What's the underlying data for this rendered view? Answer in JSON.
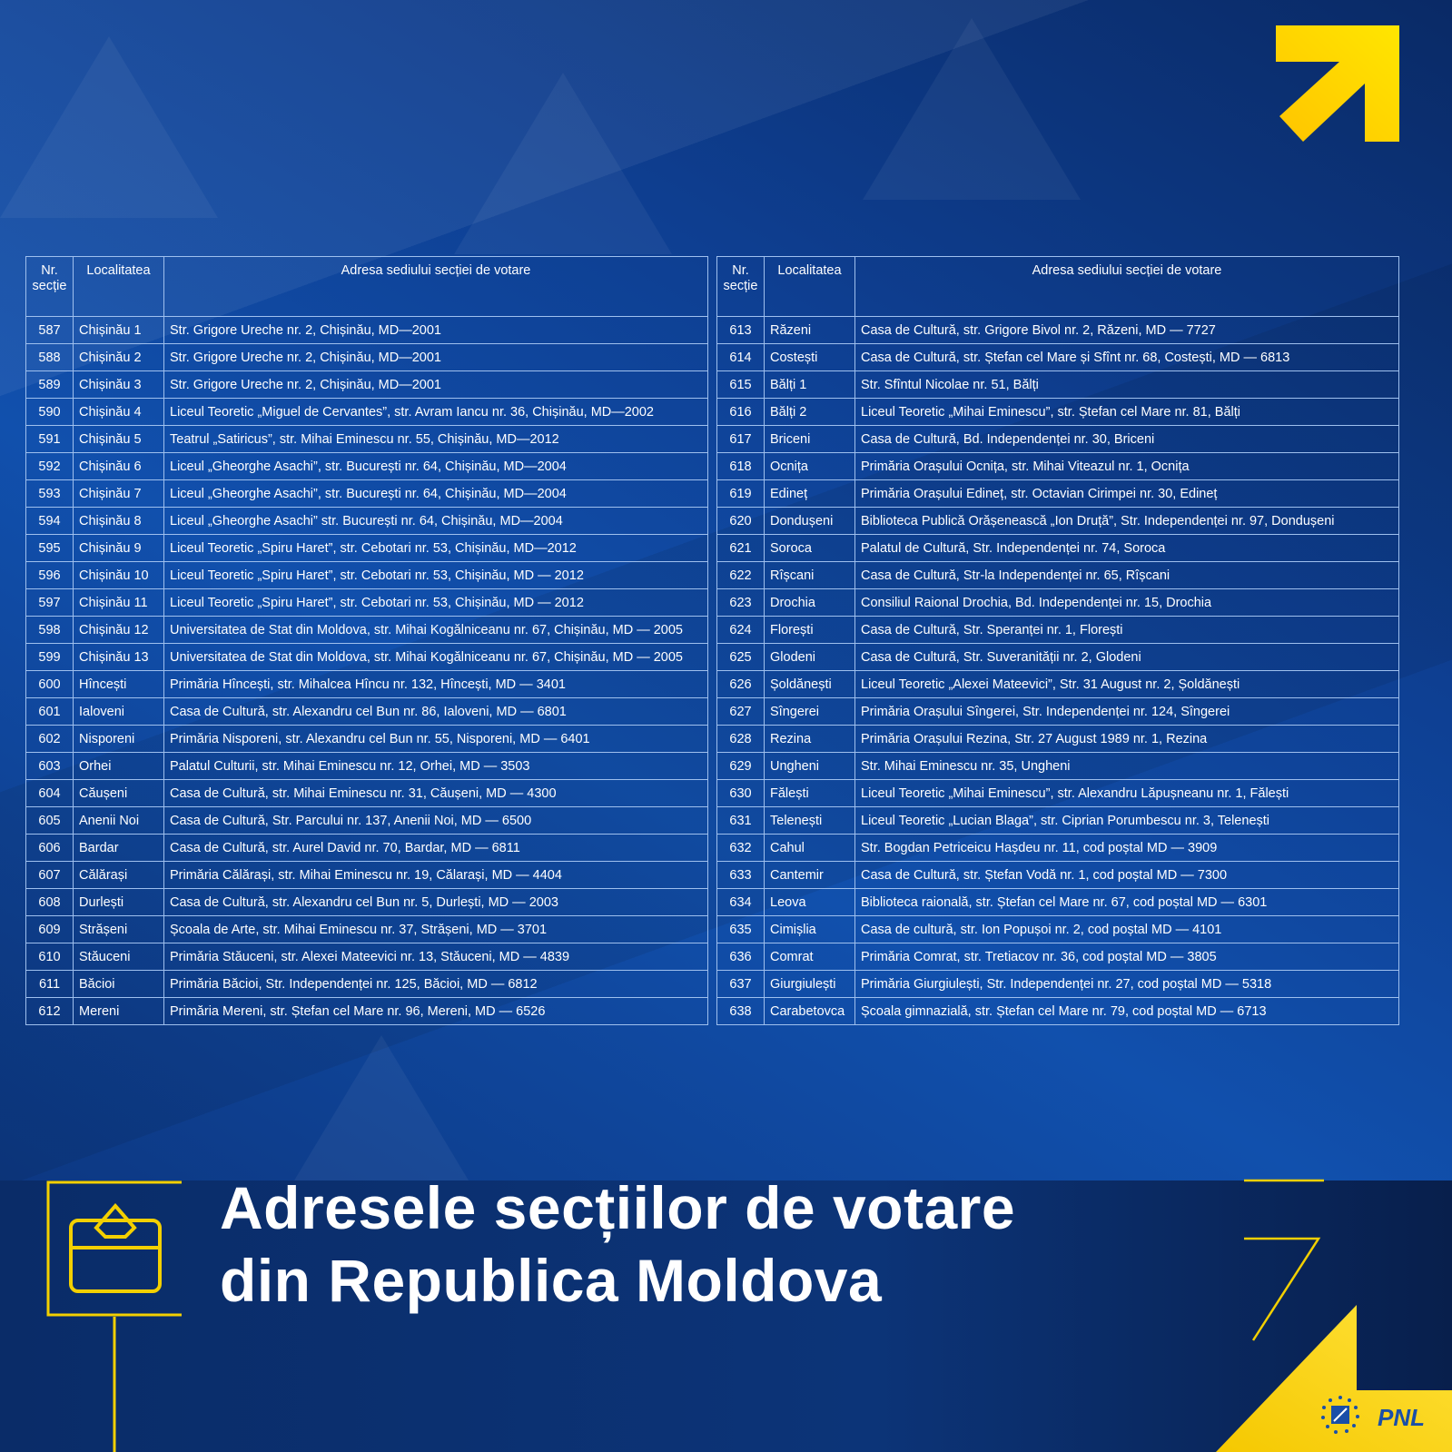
{
  "colors": {
    "background": "#0d3a86",
    "accent": "#ffd400",
    "text": "#ffffff"
  },
  "headers": {
    "nr": "Nr. secție",
    "localitatea": "Localitatea",
    "adresa": "Adresa sediului secției de votare"
  },
  "left_rows": [
    [
      "587",
      "Chișinău 1",
      "Str. Grigore Ureche nr. 2, Chișinău, MD—2001"
    ],
    [
      "588",
      "Chișinău 2",
      "Str. Grigore Ureche nr. 2, Chișinău, MD—2001"
    ],
    [
      "589",
      "Chișinău 3",
      "Str. Grigore Ureche nr. 2, Chișinău, MD—2001"
    ],
    [
      "590",
      "Chișinău 4",
      "Liceul Teoretic „Miguel de Cervantes”, str. Avram Iancu nr. 36, Chișinău, MD—2002"
    ],
    [
      "591",
      "Chișinău 5",
      "Teatrul „Satiricus”, str. Mihai Eminescu nr. 55, Chișinău, MD—2012"
    ],
    [
      "592",
      "Chișinău 6",
      "Liceul „Gheorghe Asachi”, str. București nr. 64, Chișinău, MD—2004"
    ],
    [
      "593",
      "Chișinău 7",
      "Liceul „Gheorghe Asachi”, str. București nr. 64, Chișinău, MD—2004"
    ],
    [
      "594",
      "Chișinău 8",
      "Liceul „Gheorghe Asachi” str. București nr. 64, Chișinău, MD—2004"
    ],
    [
      "595",
      "Chișinău 9",
      "Liceul Teoretic „Spiru Haret”, str. Cebotari nr. 53, Chișinău, MD—2012"
    ],
    [
      "596",
      "Chișinău 10",
      "Liceul Teoretic „Spiru Haret”, str. Cebotari nr. 53, Chișinău, MD — 2012"
    ],
    [
      "597",
      "Chișinău 11",
      "Liceul Teoretic „Spiru Haret”, str. Cebotari nr. 53, Chișinău, MD — 2012"
    ],
    [
      "598",
      "Chișinău 12",
      "Universitatea de Stat din Moldova, str. Mihai Kogălniceanu nr. 67, Chișinău, MD — 2005"
    ],
    [
      "599",
      "Chișinău 13",
      "Universitatea de Stat din Moldova, str. Mihai Kogălniceanu nr. 67, Chișinău, MD — 2005"
    ],
    [
      "600",
      "Hîncești",
      "Primăria Hîncești, str. Mihalcea Hîncu nr. 132, Hîncești, MD — 3401"
    ],
    [
      "601",
      "Ialoveni",
      "Casa de Cultură, str. Alexandru cel Bun nr. 86, Ialoveni, MD — 6801"
    ],
    [
      "602",
      "Nisporeni",
      "Primăria Nisporeni, str. Alexandru cel Bun nr. 55, Nisporeni, MD — 6401"
    ],
    [
      "603",
      "Orhei",
      "Palatul Culturii, str. Mihai Eminescu nr. 12, Orhei, MD — 3503"
    ],
    [
      "604",
      "Căușeni",
      "Casa de Cultură, str. Mihai Eminescu nr. 31, Căușeni, MD — 4300"
    ],
    [
      "605",
      "Anenii Noi",
      "Casa de Cultură, Str. Parcului nr. 137, Anenii Noi, MD — 6500"
    ],
    [
      "606",
      "Bardar",
      "Casa de Cultură, str. Aurel David nr. 70, Bardar, MD — 6811"
    ],
    [
      "607",
      "Călărași",
      "Primăria Călărași, str. Mihai Eminescu nr. 19, Călarași, MD — 4404"
    ],
    [
      "608",
      "Durlești",
      "Casa de Cultură, str. Alexandru cel Bun nr. 5, Durlești, MD — 2003"
    ],
    [
      "609",
      "Strășeni",
      "Școala de Arte, str. Mihai Eminescu nr. 37, Strășeni, MD — 3701"
    ],
    [
      "610",
      "Stăuceni",
      "Primăria Stăuceni, str. Alexei Mateevici nr. 13, Stăuceni, MD — 4839"
    ],
    [
      "611",
      "Băcioi",
      "Primăria Băcioi, Str. Independenței nr. 125, Băcioi, MD — 6812"
    ],
    [
      "612",
      "Mereni",
      "Primăria Mereni, str. Ștefan cel Mare nr. 96, Mereni, MD — 6526"
    ]
  ],
  "right_rows": [
    [
      "613",
      "Răzeni",
      "Casa de Cultură, str. Grigore Bivol nr. 2, Răzeni, MD — 7727"
    ],
    [
      "614",
      "Costești",
      "Casa de Cultură, str. Ștefan cel Mare și Sfînt nr. 68, Costești, MD — 6813"
    ],
    [
      "615",
      "Bălți 1",
      "Str. Sfîntul Nicolae nr. 51, Bălți"
    ],
    [
      "616",
      "Bălți 2",
      "Liceul Teoretic „Mihai Eminescu”, str. Ștefan cel Mare nr. 81, Bălți"
    ],
    [
      "617",
      "Briceni",
      "Casa de Cultură, Bd. Independenței nr. 30, Briceni"
    ],
    [
      "618",
      "Ocnița",
      "Primăria Orașului Ocnița, str. Mihai Viteazul nr. 1, Ocnița"
    ],
    [
      "619",
      "Edineț",
      "Primăria Orașului Edineț, str. Octavian Cirimpei nr. 30, Edineț"
    ],
    [
      "620",
      "Dondușeni",
      "Biblioteca Publică Orășenească „Ion Druță”, Str. Independenței nr. 97, Dondușeni"
    ],
    [
      "621",
      "Soroca",
      "Palatul de Cultură, Str. Independenței nr. 74, Soroca"
    ],
    [
      "622",
      "Rîșcani",
      "Casa de Cultură, Str-la Independenței nr. 65, Rîșcani"
    ],
    [
      "623",
      "Drochia",
      "Consiliul Raional Drochia, Bd. Independenței nr. 15, Drochia"
    ],
    [
      "624",
      "Florești",
      "Casa de Cultură, Str. Speranței nr. 1, Florești"
    ],
    [
      "625",
      "Glodeni",
      "Casa de Cultură, Str. Suveranității nr. 2, Glodeni"
    ],
    [
      "626",
      "Șoldănești",
      "Liceul Teoretic „Alexei Mateevici”, Str. 31 August nr. 2, Șoldănești"
    ],
    [
      "627",
      "Sîngerei",
      "Primăria Orașului Sîngerei, Str. Independenței nr. 124, Sîngerei"
    ],
    [
      "628",
      "Rezina",
      "Primăria Orașului Rezina, Str. 27 August 1989 nr. 1, Rezina"
    ],
    [
      "629",
      "Ungheni",
      "Str. Mihai Eminescu nr. 35, Ungheni"
    ],
    [
      "630",
      "Fălești",
      "Liceul Teoretic „Mihai Eminescu”, str. Alexandru Lăpușneanu nr. 1, Fălești"
    ],
    [
      "631",
      "Telenești",
      "Liceul Teoretic „Lucian Blaga”, str. Ciprian Porumbescu nr. 3, Telenești"
    ],
    [
      "632",
      "Cahul",
      "Str. Bogdan Petriceicu Hașdeu nr. 11, cod poștal MD — 3909"
    ],
    [
      "633",
      "Cantemir",
      "Casa de Cultură, str. Ștefan Vodă nr. 1, cod poștal MD — 7300"
    ],
    [
      "634",
      "Leova",
      "Biblioteca raională, str. Ștefan cel Mare nr. 67, cod poștal MD — 6301"
    ],
    [
      "635",
      "Cimișlia",
      "Casa de cultură, str. Ion Popușoi nr. 2, cod poștal MD — 4101"
    ],
    [
      "636",
      "Comrat",
      "Primăria Comrat, str. Tretiacov nr. 36, cod poștal MD — 3805"
    ],
    [
      "637",
      "Giurgiulești",
      "Primăria Giurgiulești, Str. Independenței nr. 27, cod poștal MD — 5318"
    ],
    [
      "638",
      "Carabetovca",
      "Școala gimnazială, str. Ștefan cel Mare nr. 79, cod poștal MD — 6713"
    ]
  ],
  "title": {
    "line1": "Adresele secțiilor de votare",
    "line2": "din Republica Moldova"
  },
  "logo": {
    "text": "PNL",
    "icon": "pnl-logo-icon"
  },
  "icons": {
    "arrow": "arrow-up-right-icon",
    "ballot": "ballot-box-icon"
  }
}
